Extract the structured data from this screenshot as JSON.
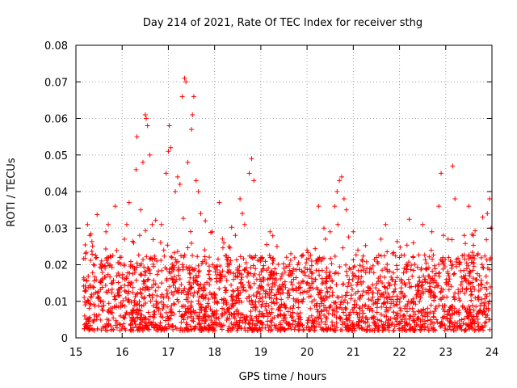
{
  "chart_data": {
    "type": "scatter",
    "title": "Day 214 of 2021, Rate Of TEC Index for receiver sthg",
    "xlabel": "GPS time / hours",
    "ylabel": "ROTI / TECUs",
    "xlim": [
      15,
      24
    ],
    "ylim": [
      0,
      0.08
    ],
    "xticks": [
      "15",
      "16",
      "17",
      "18",
      "19",
      "20",
      "21",
      "22",
      "23",
      "24"
    ],
    "yticks": [
      "0",
      "0.01",
      "0.02",
      "0.03",
      "0.04",
      "0.05",
      "0.06",
      "0.07",
      "0.08"
    ],
    "grid": true,
    "marker": "+",
    "series": [
      {
        "name": "ROTI",
        "color": "#ff0000",
        "points": [
          [
            15.2,
            0.009
          ],
          [
            15.25,
            0.031
          ],
          [
            15.3,
            0.028
          ],
          [
            15.45,
            0.022
          ],
          [
            15.55,
            0.019
          ],
          [
            15.65,
            0.029
          ],
          [
            15.7,
            0.031
          ],
          [
            15.85,
            0.036
          ],
          [
            15.95,
            0.022
          ],
          [
            16.05,
            0.027
          ],
          [
            16.1,
            0.031
          ],
          [
            16.15,
            0.037
          ],
          [
            16.25,
            0.026
          ],
          [
            16.3,
            0.046
          ],
          [
            16.32,
            0.055
          ],
          [
            16.4,
            0.035
          ],
          [
            16.45,
            0.048
          ],
          [
            16.5,
            0.061
          ],
          [
            16.52,
            0.06
          ],
          [
            16.55,
            0.058
          ],
          [
            16.6,
            0.05
          ],
          [
            16.65,
            0.031
          ],
          [
            16.75,
            0.021
          ],
          [
            16.85,
            0.031
          ],
          [
            16.9,
            0.024
          ],
          [
            16.95,
            0.045
          ],
          [
            17.0,
            0.051
          ],
          [
            17.02,
            0.058
          ],
          [
            17.05,
            0.052
          ],
          [
            17.15,
            0.04
          ],
          [
            17.2,
            0.044
          ],
          [
            17.25,
            0.042
          ],
          [
            17.3,
            0.066
          ],
          [
            17.35,
            0.071
          ],
          [
            17.38,
            0.07
          ],
          [
            17.42,
            0.048
          ],
          [
            17.5,
            0.057
          ],
          [
            17.52,
            0.061
          ],
          [
            17.55,
            0.066
          ],
          [
            17.6,
            0.043
          ],
          [
            17.65,
            0.04
          ],
          [
            17.7,
            0.034
          ],
          [
            17.8,
            0.032
          ],
          [
            17.95,
            0.029
          ],
          [
            18.1,
            0.037
          ],
          [
            18.2,
            0.026
          ],
          [
            18.3,
            0.022
          ],
          [
            18.45,
            0.028
          ],
          [
            18.55,
            0.038
          ],
          [
            18.6,
            0.034
          ],
          [
            18.65,
            0.031
          ],
          [
            18.75,
            0.045
          ],
          [
            18.8,
            0.049
          ],
          [
            18.85,
            0.043
          ],
          [
            19.0,
            0.022
          ],
          [
            19.2,
            0.029
          ],
          [
            19.35,
            0.025
          ],
          [
            19.5,
            0.019
          ],
          [
            19.65,
            0.023
          ],
          [
            19.8,
            0.02
          ],
          [
            20.0,
            0.024
          ],
          [
            20.1,
            0.021
          ],
          [
            20.25,
            0.036
          ],
          [
            20.4,
            0.027
          ],
          [
            20.5,
            0.029
          ],
          [
            20.6,
            0.036
          ],
          [
            20.65,
            0.04
          ],
          [
            20.7,
            0.043
          ],
          [
            20.75,
            0.044
          ],
          [
            20.8,
            0.038
          ],
          [
            20.85,
            0.035
          ],
          [
            21.0,
            0.029
          ],
          [
            21.1,
            0.024
          ],
          [
            21.2,
            0.021
          ],
          [
            21.35,
            0.018
          ],
          [
            21.5,
            0.022
          ],
          [
            21.6,
            0.027
          ],
          [
            21.7,
            0.031
          ],
          [
            21.85,
            0.023
          ],
          [
            22.0,
            0.022
          ],
          [
            22.1,
            0.019
          ],
          [
            22.3,
            0.026
          ],
          [
            22.5,
            0.031
          ],
          [
            22.7,
            0.029
          ],
          [
            22.85,
            0.036
          ],
          [
            22.9,
            0.045
          ],
          [
            22.95,
            0.028
          ],
          [
            23.05,
            0.027
          ],
          [
            23.1,
            0.021
          ],
          [
            23.15,
            0.047
          ],
          [
            23.2,
            0.038
          ],
          [
            23.4,
            0.028
          ],
          [
            23.5,
            0.036
          ],
          [
            23.6,
            0.028
          ],
          [
            23.7,
            0.023
          ],
          [
            23.8,
            0.033
          ],
          [
            23.9,
            0.034
          ],
          [
            23.95,
            0.038
          ],
          [
            23.98,
            0.03
          ]
        ],
        "note": "Additional dense band of points between roughly 0.002 and 0.02 TECU across 15.2-24 hours",
        "band": {
          "x_range": [
            15.15,
            23.98
          ],
          "y_min": 0.002,
          "y_max": 0.02
        }
      }
    ]
  }
}
